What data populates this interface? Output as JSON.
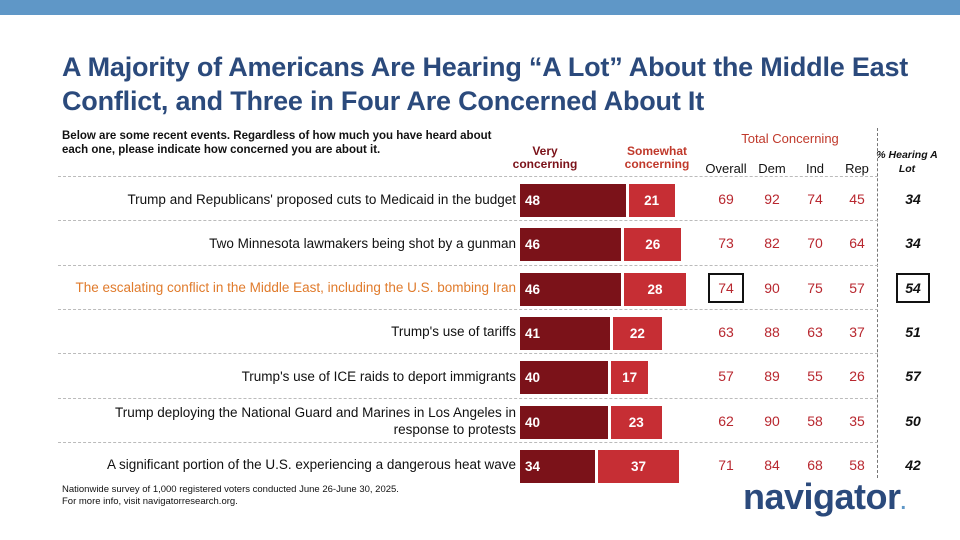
{
  "title": "A Majority of Americans Are Hearing “A Lot” About the Middle East Conflict, and Three in Four Are Concerned About It",
  "intro": "Below are some recent events. Regardless of how much you have heard about each one, please indicate how concerned you are about it.",
  "headers": {
    "very": "Very concerning",
    "somewhat": "Somewhat concerning",
    "total": "Total Concerning",
    "overall": "Overall",
    "dem": "Dem",
    "ind": "Ind",
    "rep": "Rep",
    "hearing": "% Hearing A Lot"
  },
  "colors": {
    "very": "#7b1219",
    "somewhat": "#c62e34",
    "highlight": "#e07b2c",
    "title": "#2b4a7c",
    "topbar": "#5f97c7"
  },
  "chart_data": {
    "type": "bar",
    "stacked": true,
    "orientation": "horizontal",
    "title": "A Majority of Americans Are Hearing “A Lot” About the Middle East Conflict, and Three in Four Are Concerned About It",
    "categories": [
      "Trump and Republicans' proposed cuts to Medicaid in the budget",
      "Two Minnesota lawmakers being shot by a gunman",
      "The escalating conflict in the Middle East, including the U.S. bombing Iran",
      "Trump's use of tariffs",
      "Trump's use of ICE raids to deport immigrants",
      "Trump deploying the National Guard and Marines in Los Angeles in response to protests",
      "A significant portion of the U.S. experiencing a dangerous heat wave"
    ],
    "highlight_index": 2,
    "series": [
      {
        "name": "Very concerning",
        "values": [
          48,
          46,
          46,
          41,
          40,
          40,
          34
        ]
      },
      {
        "name": "Somewhat concerning",
        "values": [
          21,
          26,
          28,
          22,
          17,
          23,
          37
        ]
      }
    ],
    "total_concerning": {
      "overall": [
        69,
        73,
        74,
        63,
        57,
        62,
        71
      ],
      "dem": [
        92,
        82,
        90,
        88,
        89,
        90,
        84
      ],
      "ind": [
        74,
        70,
        75,
        63,
        55,
        58,
        68
      ],
      "rep": [
        45,
        64,
        57,
        37,
        26,
        35,
        58
      ]
    },
    "hearing_a_lot": [
      34,
      34,
      54,
      51,
      57,
      50,
      42
    ]
  },
  "footnote": {
    "line1": "Nationwide survey of 1,000 registered voters conducted June 26-June 30, 2025.",
    "line2": "For more info, visit navigatorresearch.org."
  },
  "brand": "navigator",
  "brand_dot": "."
}
